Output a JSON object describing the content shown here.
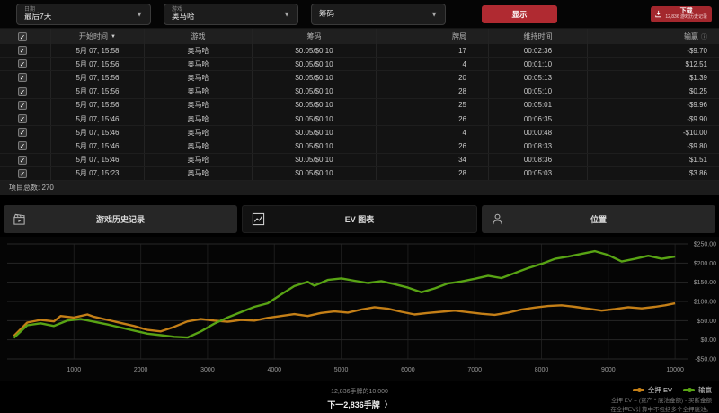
{
  "filters": {
    "date": {
      "label": "日期",
      "value": "最后7天"
    },
    "game": {
      "label": "游戏",
      "value": "奥马哈"
    },
    "stakes": {
      "value": "筹码"
    },
    "show_label": "显示"
  },
  "download": {
    "title": "下载",
    "subtitle": "12,836 游戏历史记录"
  },
  "table": {
    "columns": [
      "开始时间",
      "游戏",
      "筹码",
      "牌局",
      "维持时间",
      "输赢"
    ],
    "rows": [
      {
        "start": "5月 07, 15:58",
        "game": "奥马哈",
        "stakes": "$0.05/$0.10",
        "hands": "17",
        "duration": "00:02:36",
        "result": "-$9.70"
      },
      {
        "start": "5月 07, 15:56",
        "game": "奥马哈",
        "stakes": "$0.05/$0.10",
        "hands": "4",
        "duration": "00:01:10",
        "result": "$12.51"
      },
      {
        "start": "5月 07, 15:56",
        "game": "奥马哈",
        "stakes": "$0.05/$0.10",
        "hands": "20",
        "duration": "00:05:13",
        "result": "$1.39"
      },
      {
        "start": "5月 07, 15:56",
        "game": "奥马哈",
        "stakes": "$0.05/$0.10",
        "hands": "28",
        "duration": "00:05:10",
        "result": "$0.25"
      },
      {
        "start": "5月 07, 15:56",
        "game": "奥马哈",
        "stakes": "$0.05/$0.10",
        "hands": "25",
        "duration": "00:05:01",
        "result": "-$9.96"
      },
      {
        "start": "5月 07, 15:46",
        "game": "奥马哈",
        "stakes": "$0.05/$0.10",
        "hands": "26",
        "duration": "00:06:35",
        "result": "-$9.90"
      },
      {
        "start": "5月 07, 15:46",
        "game": "奥马哈",
        "stakes": "$0.05/$0.10",
        "hands": "4",
        "duration": "00:00:48",
        "result": "-$10.00"
      },
      {
        "start": "5月 07, 15:46",
        "game": "奥马哈",
        "stakes": "$0.05/$0.10",
        "hands": "26",
        "duration": "00:08:33",
        "result": "-$9.80"
      },
      {
        "start": "5月 07, 15:46",
        "game": "奥马哈",
        "stakes": "$0.05/$0.10",
        "hands": "34",
        "duration": "00:08:36",
        "result": "$1.51"
      },
      {
        "start": "5月 07, 15:23",
        "game": "奥马哈",
        "stakes": "$0.05/$0.10",
        "hands": "28",
        "duration": "00:05:03",
        "result": "$3.86"
      }
    ],
    "footer": "项目总数: 270"
  },
  "tabs": [
    {
      "label": "游戏历史记录",
      "active": false
    },
    {
      "label": "EV 图表",
      "active": true
    },
    {
      "label": "位置",
      "active": false
    }
  ],
  "pager": {
    "of_text": "12,836手牌的10,000",
    "next_label": "下一2,836手牌",
    "chevron": "〉"
  },
  "caption": {
    "line1": "全押 EV = (资产 * 底池金额) - 买断金额",
    "line2": "在全押EV计算中不包括多个全押底池。"
  },
  "chart_data": {
    "type": "line",
    "xlabel": "",
    "ylabel": "",
    "xlim": [
      0,
      10200
    ],
    "ylim": [
      -50,
      250
    ],
    "grid": true,
    "legend_position": "bottom-right",
    "xticks": [
      1000,
      2000,
      3000,
      4000,
      5000,
      6000,
      7000,
      8000,
      9000,
      10000
    ],
    "yticks": [
      {
        "v": 250,
        "label": "$250.00"
      },
      {
        "v": 200,
        "label": "$200.00"
      },
      {
        "v": 150,
        "label": "$150.00"
      },
      {
        "v": 100,
        "label": "$100.00"
      },
      {
        "v": 50,
        "label": "$50.00"
      },
      {
        "v": 0,
        "label": "$0.00"
      },
      {
        "v": -50,
        "label": "-$50.00"
      }
    ],
    "series": [
      {
        "name": "全押 EV",
        "color": "#c47f17",
        "points": [
          [
            100,
            10
          ],
          [
            300,
            45
          ],
          [
            500,
            52
          ],
          [
            700,
            48
          ],
          [
            800,
            62
          ],
          [
            1000,
            58
          ],
          [
            1200,
            66
          ],
          [
            1300,
            60
          ],
          [
            1500,
            52
          ],
          [
            1700,
            44
          ],
          [
            1900,
            36
          ],
          [
            2100,
            26
          ],
          [
            2300,
            22
          ],
          [
            2500,
            34
          ],
          [
            2700,
            48
          ],
          [
            2900,
            54
          ],
          [
            3100,
            50
          ],
          [
            3300,
            47
          ],
          [
            3500,
            52
          ],
          [
            3700,
            50
          ],
          [
            3900,
            57
          ],
          [
            4100,
            62
          ],
          [
            4300,
            67
          ],
          [
            4500,
            62
          ],
          [
            4700,
            70
          ],
          [
            4900,
            74
          ],
          [
            5100,
            71
          ],
          [
            5300,
            79
          ],
          [
            5500,
            85
          ],
          [
            5700,
            81
          ],
          [
            5900,
            73
          ],
          [
            6100,
            66
          ],
          [
            6300,
            70
          ],
          [
            6500,
            73
          ],
          [
            6700,
            76
          ],
          [
            6900,
            72
          ],
          [
            7100,
            68
          ],
          [
            7300,
            65
          ],
          [
            7500,
            71
          ],
          [
            7700,
            79
          ],
          [
            7900,
            84
          ],
          [
            8100,
            88
          ],
          [
            8300,
            90
          ],
          [
            8500,
            86
          ],
          [
            8700,
            81
          ],
          [
            8900,
            76
          ],
          [
            9100,
            80
          ],
          [
            9300,
            85
          ],
          [
            9500,
            82
          ],
          [
            9700,
            86
          ],
          [
            9850,
            90
          ],
          [
            10000,
            95
          ]
        ]
      },
      {
        "name": "输赢",
        "color": "#58a314",
        "points": [
          [
            100,
            5
          ],
          [
            300,
            38
          ],
          [
            500,
            43
          ],
          [
            700,
            36
          ],
          [
            900,
            50
          ],
          [
            1100,
            54
          ],
          [
            1300,
            47
          ],
          [
            1500,
            40
          ],
          [
            1700,
            32
          ],
          [
            1900,
            24
          ],
          [
            2100,
            16
          ],
          [
            2300,
            12
          ],
          [
            2500,
            8
          ],
          [
            2700,
            6
          ],
          [
            2900,
            22
          ],
          [
            3100,
            42
          ],
          [
            3300,
            58
          ],
          [
            3500,
            72
          ],
          [
            3700,
            86
          ],
          [
            3900,
            95
          ],
          [
            4100,
            118
          ],
          [
            4300,
            140
          ],
          [
            4500,
            151
          ],
          [
            4600,
            141
          ],
          [
            4800,
            156
          ],
          [
            5000,
            160
          ],
          [
            5200,
            154
          ],
          [
            5400,
            148
          ],
          [
            5600,
            153
          ],
          [
            5800,
            145
          ],
          [
            6000,
            136
          ],
          [
            6200,
            124
          ],
          [
            6400,
            134
          ],
          [
            6600,
            147
          ],
          [
            6800,
            152
          ],
          [
            7000,
            159
          ],
          [
            7200,
            167
          ],
          [
            7400,
            161
          ],
          [
            7600,
            174
          ],
          [
            7800,
            187
          ],
          [
            8000,
            198
          ],
          [
            8200,
            211
          ],
          [
            8400,
            217
          ],
          [
            8600,
            224
          ],
          [
            8800,
            231
          ],
          [
            9000,
            221
          ],
          [
            9200,
            204
          ],
          [
            9400,
            211
          ],
          [
            9600,
            219
          ],
          [
            9800,
            211
          ],
          [
            10000,
            217
          ]
        ]
      }
    ]
  }
}
